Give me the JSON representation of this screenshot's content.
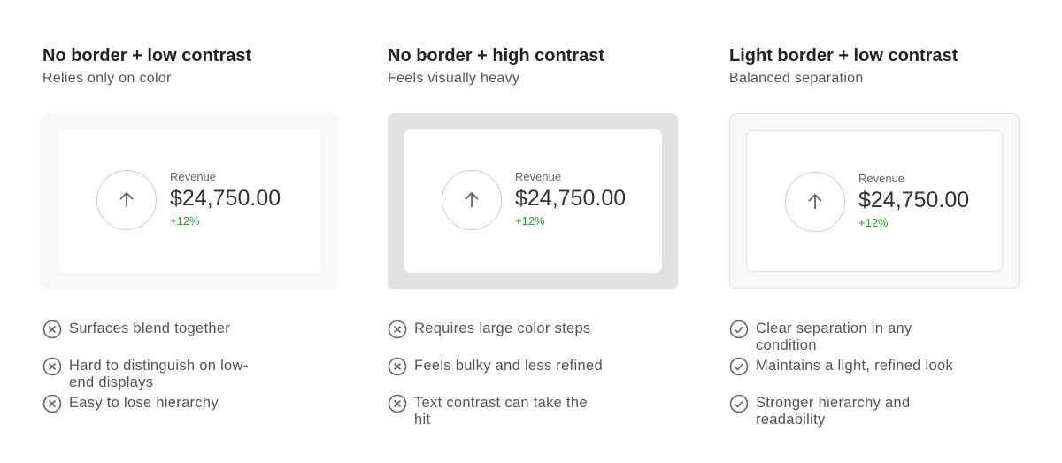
{
  "panels": [
    {
      "title": "No border + low contrast",
      "subtitle": "Relies only on color",
      "card": {
        "label": "Revenue",
        "value": "$24,750.00",
        "change": "+12%"
      },
      "points": [
        "Surfaces blend together",
        "Hard to distinguish on low-end displays",
        "Easy to lose hierarchy"
      ]
    },
    {
      "title": "No border + high contrast",
      "subtitle": "Feels visually heavy",
      "card": {
        "label": "Revenue",
        "value": "$24,750.00",
        "change": "+12%"
      },
      "points": [
        "Requires large color steps",
        "Feels bulky and less refined",
        "Text contrast can take the hit"
      ]
    },
    {
      "title": "Light border + low contrast",
      "subtitle": "Balanced separation",
      "card": {
        "label": "Revenue",
        "value": "$24,750.00",
        "change": "+12%"
      },
      "points": [
        "Clear separation in any condition",
        "Maintains a light, refined look",
        "Stronger hierarchy and readability"
      ]
    }
  ]
}
